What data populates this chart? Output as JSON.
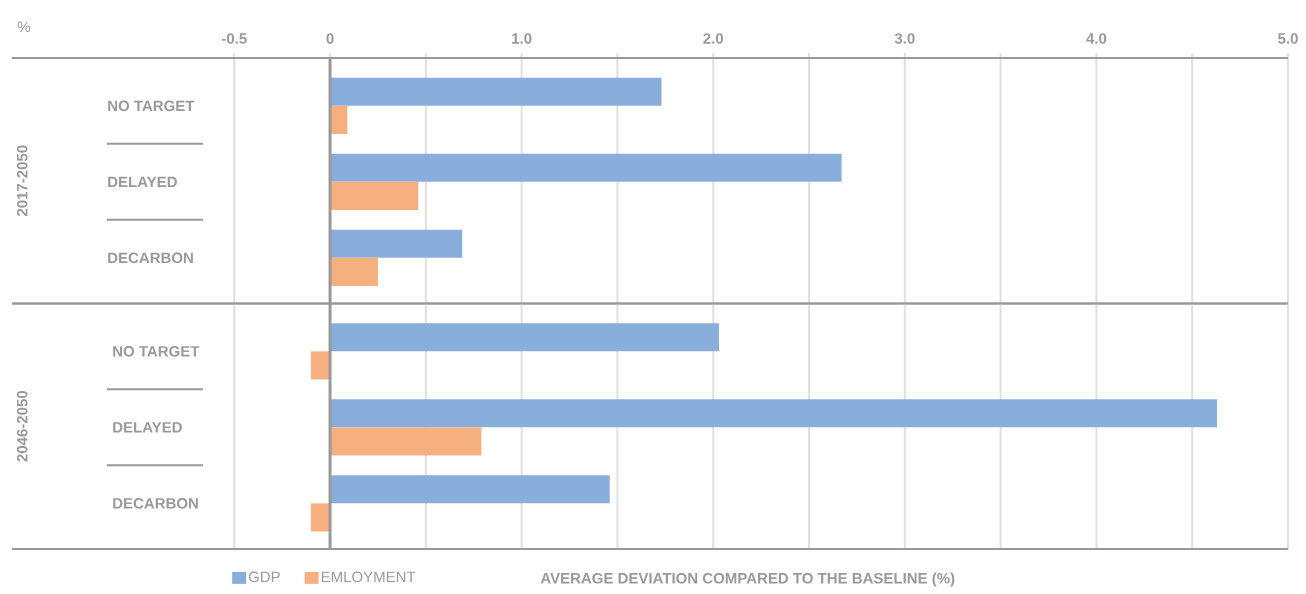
{
  "chart_data": [
    {
      "type": "bar",
      "orientation": "horizontal",
      "categories": [
        "NO TARGET",
        "DELAYED",
        "DECARBON"
      ],
      "ylabel": "2017-2050",
      "series": [
        {
          "color": "#8aaedc",
          "values": [
            1.73,
            2.67,
            0.69
          ]
        },
        {
          "color": "#f6b080",
          "values": [
            0.09,
            0.46,
            0.25
          ]
        }
      ],
      "xlim": [
        -1.66,
        5.0
      ],
      "xticks": [
        {
          "value": -0.5,
          "label": "-0.5"
        },
        0,
        {
          "value": 0.5,
          "label": null
        },
        {
          "value": 1.0,
          "label": "1.0"
        },
        {
          "value": 1.5,
          "label": null
        },
        {
          "value": 2.0,
          "label": "2.0"
        },
        {
          "value": 2.5,
          "label": null
        },
        {
          "value": 3.0,
          "label": "3.0"
        },
        {
          "value": 3.5,
          "label": null
        },
        {
          "value": 4.0,
          "label": "4.0"
        },
        {
          "value": 4.5,
          "label": null
        },
        {
          "value": 5.0,
          "label": "5.0"
        }
      ],
      "grid": "x",
      "ref_lines": [
        {
          "axis": "x",
          "value": 0,
          "color": "#999999"
        }
      ],
      "annotations": [
        "%"
      ]
    },
    {
      "type": "bar",
      "orientation": "horizontal",
      "categories": [
        "NO TARGET",
        "DELAYED",
        "DECARBON"
      ],
      "ylabel": "2046-2050",
      "series": [
        {
          "name": "GDP",
          "color": "#8aaedc",
          "values": [
            2.03,
            4.63,
            1.46
          ]
        },
        {
          "name": "EMLOYMENT",
          "color": "#f6b080",
          "values": [
            -0.1,
            0.79,
            -0.1
          ]
        }
      ],
      "xlabel": "AVERAGE DEVIATION  COMPARED TO THE BASELINE (%)",
      "xlim": [
        -1.66,
        5.0
      ],
      "xticks": [
        {
          "value": -0.5,
          "label": null
        },
        {
          "value": 0,
          "label": null
        },
        {
          "value": 0.5,
          "label": null
        },
        {
          "value": 1.0,
          "label": null
        },
        {
          "value": 1.5,
          "label": null
        },
        {
          "value": 2.0,
          "label": null
        },
        {
          "value": 2.5,
          "label": null
        },
        {
          "value": 3.0,
          "label": null
        },
        {
          "value": 3.5,
          "label": null
        },
        {
          "value": 4.0,
          "label": null
        },
        {
          "value": 4.5,
          "label": null
        },
        {
          "value": 5.0,
          "label": null
        }
      ],
      "tick_labels": "y",
      "grid": "x",
      "legend": "bottom",
      "ref_lines": [
        {
          "axis": "x",
          "value": 0,
          "color": "#999999"
        }
      ]
    }
  ]
}
